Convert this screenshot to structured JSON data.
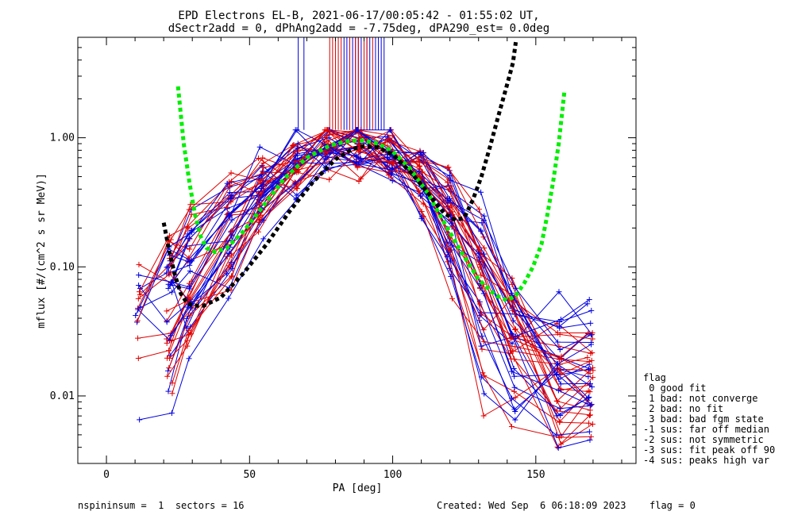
{
  "chart_data": {
    "type": "line",
    "title_line1": "EPD Electrons EL-B, 2021-06-17/00:05:42 - 01:55:02 UT,",
    "title_line2": "dSectr2add = 0, dPhAng2add = -7.75deg, dPA290_est=   0.0deg",
    "xlabel": "PA [deg]",
    "ylabel": "mflux [#/(cm^2 s sr MeV)]",
    "xlim": [
      -10,
      185
    ],
    "ylim": [
      0.003,
      6.0
    ],
    "yscale": "log",
    "x_ticks": [
      0,
      50,
      100,
      150
    ],
    "x_tick_labels": [
      "0",
      "50",
      "100",
      "150"
    ],
    "y_ticks": [
      0.01,
      0.1,
      1.0
    ],
    "y_tick_labels": [
      "0.01",
      "0.10",
      "1.00"
    ],
    "grid": false,
    "series_colors": {
      "red": "#e00000",
      "blue": "#0000e0",
      "green": "#00ff00",
      "black": "#000000"
    },
    "fit_curves": [
      {
        "color": "green",
        "x": [
          25,
          27,
          29,
          31,
          33,
          35,
          38,
          42,
          48,
          55,
          62,
          70,
          78,
          85,
          90,
          95,
          100,
          106,
          112,
          118,
          124,
          130,
          136,
          140,
          143,
          146,
          149,
          152,
          154,
          156,
          158,
          160
        ],
        "y": [
          2.5,
          0.9,
          0.45,
          0.25,
          0.17,
          0.14,
          0.13,
          0.14,
          0.19,
          0.3,
          0.48,
          0.7,
          0.87,
          0.95,
          0.95,
          0.9,
          0.78,
          0.58,
          0.38,
          0.22,
          0.13,
          0.08,
          0.06,
          0.055,
          0.06,
          0.075,
          0.1,
          0.15,
          0.25,
          0.45,
          0.9,
          2.3
        ]
      },
      {
        "color": "black",
        "x": [
          20,
          22,
          24,
          26,
          28,
          30,
          34,
          40,
          48,
          56,
          64,
          72,
          80,
          86,
          90,
          95,
          100,
          106,
          112,
          118,
          122,
          125,
          128,
          131,
          134,
          137,
          140,
          142,
          143
        ],
        "y": [
          0.22,
          0.13,
          0.085,
          0.062,
          0.053,
          0.05,
          0.05,
          0.058,
          0.09,
          0.15,
          0.27,
          0.45,
          0.68,
          0.82,
          0.86,
          0.84,
          0.74,
          0.55,
          0.38,
          0.26,
          0.23,
          0.24,
          0.33,
          0.5,
          0.85,
          1.5,
          2.6,
          3.8,
          5.5
        ]
      }
    ],
    "fit_colors": {
      "green": "#00ee00",
      "black": "#000000"
    },
    "vertical_markers": {
      "blue": [
        67,
        69,
        83,
        84,
        85,
        86,
        87,
        88,
        89,
        90,
        91,
        92,
        94,
        95,
        96,
        97
      ],
      "red": [
        78,
        79,
        80,
        81,
        82,
        85,
        87,
        88,
        90,
        91,
        93
      ],
      "y_top": 6.0,
      "y_bottom": 1.15
    }
  },
  "legend": {
    "heading": "flag",
    "items": [
      " 0 good fit",
      " 1 bad: not converge",
      " 2 bad: no fit",
      " 3 bad: bad fgm state",
      "-1 sus: far off median",
      "-2 sus: not symmetric",
      "-3 sus: fit peak off 90",
      "-4 sus: peaks high var"
    ]
  },
  "footer": {
    "left": "nspininsum =  1  sectors = 16",
    "created": "Created: Wed Sep  6 06:18:09 2023",
    "flag": "flag = 0"
  }
}
